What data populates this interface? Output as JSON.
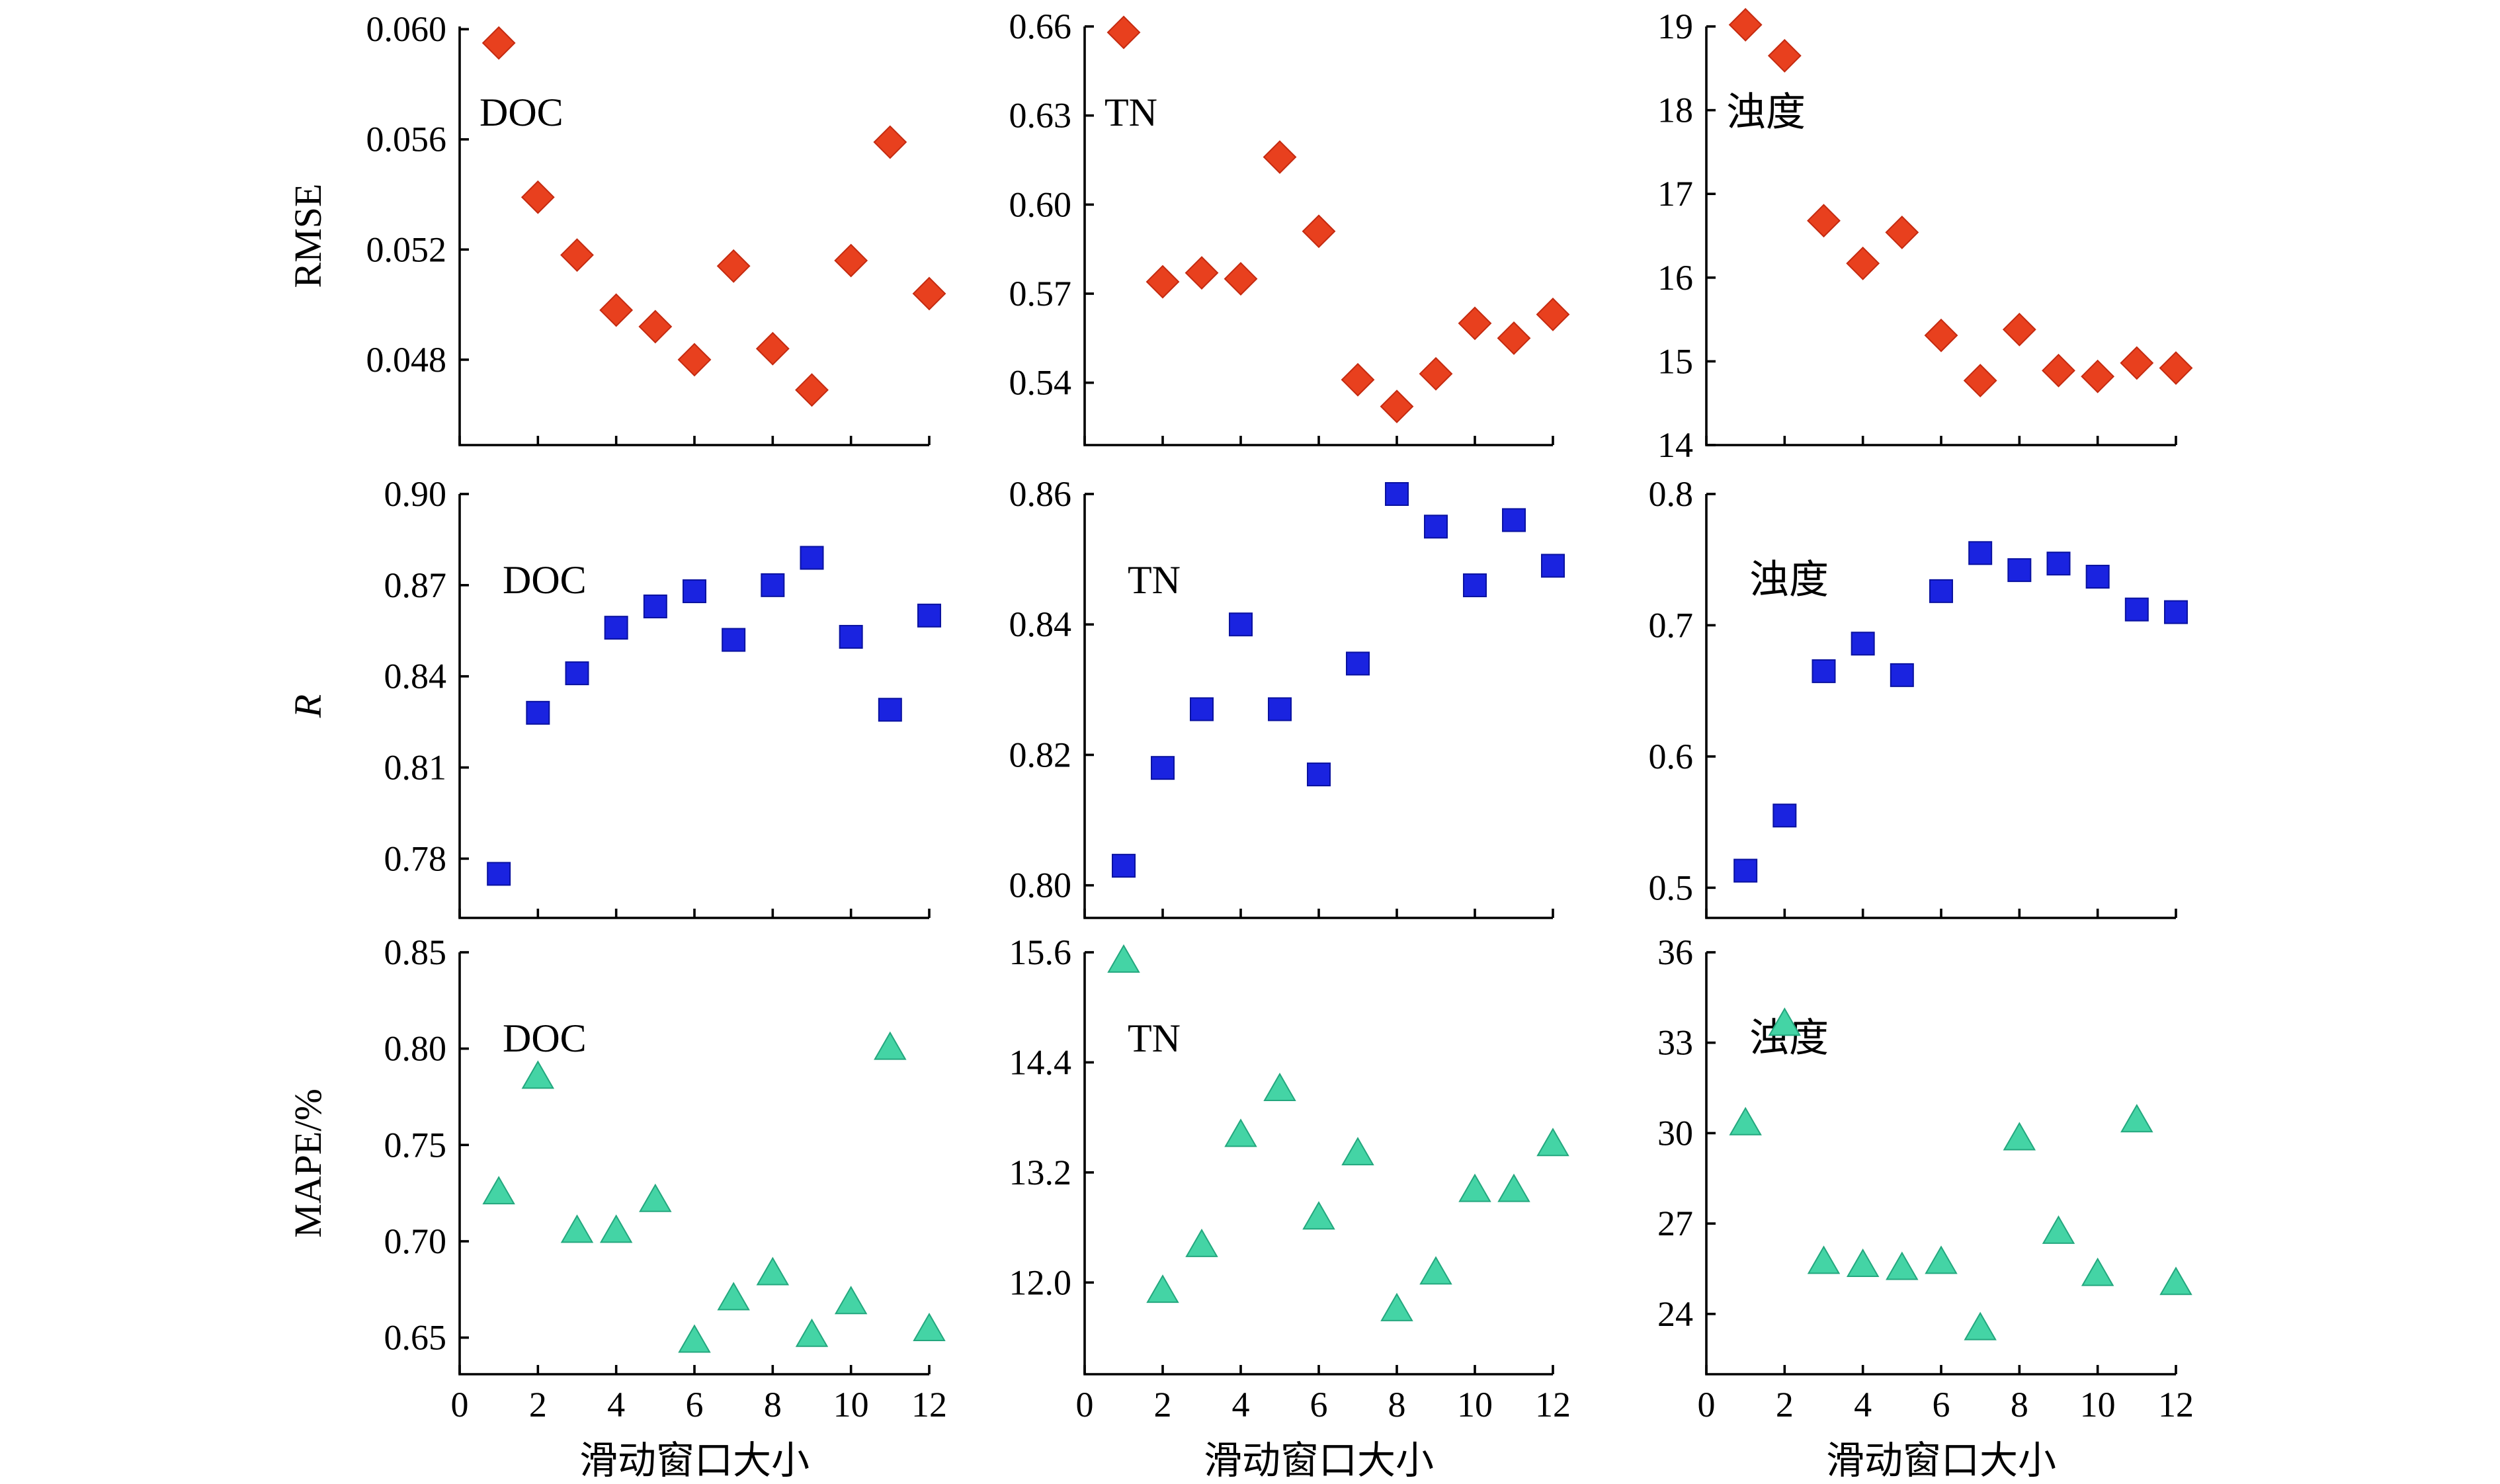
{
  "figure": {
    "xlabel": "滑动窗口大小",
    "row_ylabels": [
      "RMSE",
      "R",
      "MAPE/%"
    ]
  },
  "colors": {
    "rmse": "#e8401e",
    "r": "#1a23e0",
    "mape": "#44d4a5"
  },
  "chart_data": [
    {
      "type": "scatter",
      "label": "DOC",
      "metric": "RMSE",
      "ylabel": "RMSE",
      "xlabel": "",
      "marker": "diamond",
      "color": "#e8401e",
      "xticks": [],
      "xlim": [
        0,
        12
      ],
      "yticks": [
        "0.060",
        "0.056",
        "0.052",
        "0.048"
      ],
      "ylim": [
        0.0449,
        0.0601
      ],
      "x": [
        1,
        2,
        3,
        4,
        5,
        6,
        7,
        8,
        9,
        10,
        11,
        12
      ],
      "y": [
        0.0595,
        0.0539,
        0.0518,
        0.0498,
        0.0492,
        0.048,
        0.0514,
        0.0484,
        0.0469,
        0.0516,
        0.0559,
        0.0504
      ]
    },
    {
      "type": "scatter",
      "label": "TN",
      "metric": "RMSE",
      "ylabel": "",
      "xlabel": "",
      "marker": "diamond",
      "color": "#e8401e",
      "xticks": [],
      "xlim": [
        0,
        12
      ],
      "yticks": [
        "0.66",
        "0.63",
        "0.60",
        "0.57",
        "0.54"
      ],
      "ylim": [
        0.519,
        0.66
      ],
      "x": [
        1,
        2,
        3,
        4,
        5,
        6,
        7,
        8,
        9,
        10,
        11,
        12
      ],
      "y": [
        0.658,
        0.574,
        0.577,
        0.575,
        0.616,
        0.591,
        0.541,
        0.532,
        0.543,
        0.56,
        0.555,
        0.563
      ]
    },
    {
      "type": "scatter",
      "label": "浊度",
      "metric": "RMSE",
      "ylabel": "",
      "xlabel": "",
      "marker": "diamond",
      "color": "#e8401e",
      "xticks": [],
      "xlim": [
        0,
        12
      ],
      "yticks": [
        "19",
        "18",
        "17",
        "16",
        "15",
        "14"
      ],
      "ylim": [
        14,
        19
      ],
      "x": [
        1,
        2,
        3,
        4,
        5,
        6,
        7,
        8,
        9,
        10,
        11,
        12
      ],
      "y": [
        19.02,
        18.65,
        16.68,
        16.17,
        16.54,
        15.31,
        14.77,
        15.38,
        14.89,
        14.82,
        14.98,
        14.92
      ]
    },
    {
      "type": "scatter",
      "label": "DOC",
      "metric": "R",
      "ylabel": "R",
      "xlabel": "",
      "marker": "square",
      "color": "#1a23e0",
      "xticks": [],
      "xlim": [
        0,
        12
      ],
      "yticks": [
        "0.90",
        "0.87",
        "0.84",
        "0.81",
        "0.78"
      ],
      "ylim": [
        0.7605,
        0.9
      ],
      "x": [
        1,
        2,
        3,
        4,
        5,
        6,
        7,
        8,
        9,
        10,
        11,
        12
      ],
      "y": [
        0.775,
        0.828,
        0.841,
        0.856,
        0.863,
        0.868,
        0.852,
        0.87,
        0.879,
        0.853,
        0.829,
        0.86
      ]
    },
    {
      "type": "scatter",
      "label": "TN",
      "metric": "R",
      "ylabel": "",
      "xlabel": "",
      "marker": "square",
      "color": "#1a23e0",
      "xticks": [],
      "xlim": [
        0,
        12
      ],
      "yticks": [
        "0.86",
        "0.84",
        "0.82",
        "0.80"
      ],
      "ylim": [
        0.795,
        0.86
      ],
      "x": [
        1,
        2,
        3,
        4,
        5,
        6,
        7,
        8,
        9,
        10,
        11,
        12
      ],
      "y": [
        0.803,
        0.818,
        0.827,
        0.84,
        0.827,
        0.817,
        0.834,
        0.86,
        0.855,
        0.846,
        0.856,
        0.849
      ]
    },
    {
      "type": "scatter",
      "label": "浊度",
      "metric": "R",
      "ylabel": "",
      "xlabel": "",
      "marker": "square",
      "color": "#1a23e0",
      "xticks": [],
      "xlim": [
        0,
        12
      ],
      "yticks": [
        "0.8",
        "0.7",
        "0.6",
        "0.5"
      ],
      "ylim": [
        0.477,
        0.8
      ],
      "x": [
        1,
        2,
        3,
        4,
        5,
        6,
        7,
        8,
        9,
        10,
        11,
        12
      ],
      "y": [
        0.513,
        0.555,
        0.665,
        0.686,
        0.662,
        0.726,
        0.755,
        0.742,
        0.747,
        0.737,
        0.712,
        0.71
      ]
    },
    {
      "type": "scatter",
      "label": "DOC",
      "metric": "MAPE",
      "ylabel": "MAPE/%",
      "xlabel": "滑动窗口大小",
      "marker": "triangle",
      "color": "#44d4a5",
      "xticks": [
        "0",
        "2",
        "4",
        "6",
        "8",
        "10",
        "12"
      ],
      "xlim": [
        0,
        12
      ],
      "yticks": [
        "0.85",
        "0.80",
        "0.75",
        "0.70",
        "0.65"
      ],
      "ylim": [
        0.631,
        0.85
      ],
      "x": [
        1,
        2,
        3,
        4,
        5,
        6,
        7,
        8,
        9,
        10,
        11,
        12
      ],
      "y": [
        0.725,
        0.785,
        0.705,
        0.705,
        0.721,
        0.648,
        0.67,
        0.683,
        0.651,
        0.668,
        0.8,
        0.654
      ]
    },
    {
      "type": "scatter",
      "label": "TN",
      "metric": "MAPE",
      "ylabel": "",
      "xlabel": "滑动窗口大小",
      "marker": "triangle",
      "color": "#44d4a5",
      "xticks": [
        "0",
        "2",
        "4",
        "6",
        "8",
        "10",
        "12"
      ],
      "xlim": [
        0,
        12
      ],
      "yticks": [
        "15.6",
        "14.4",
        "13.2",
        "12.0"
      ],
      "ylim": [
        11.0,
        15.6
      ],
      "x": [
        1,
        2,
        3,
        4,
        5,
        6,
        7,
        8,
        9,
        10,
        11,
        12
      ],
      "y": [
        15.5,
        11.9,
        12.4,
        13.6,
        14.1,
        12.7,
        13.4,
        11.7,
        12.1,
        13.0,
        13.0,
        13.5
      ]
    },
    {
      "type": "scatter",
      "label": "浊度",
      "metric": "MAPE",
      "ylabel": "",
      "xlabel": "滑动窗口大小",
      "marker": "triangle",
      "color": "#44d4a5",
      "xticks": [
        "0",
        "2",
        "4",
        "6",
        "8",
        "10",
        "12"
      ],
      "xlim": [
        0,
        12
      ],
      "yticks": [
        "36",
        "33",
        "30",
        "27",
        "24"
      ],
      "ylim": [
        22,
        36
      ],
      "x": [
        1,
        2,
        3,
        4,
        5,
        6,
        7,
        8,
        9,
        10,
        11,
        12
      ],
      "y": [
        30.3,
        33.6,
        25.7,
        25.6,
        25.5,
        25.7,
        23.5,
        29.8,
        26.7,
        25.3,
        30.4,
        25.0
      ]
    }
  ]
}
